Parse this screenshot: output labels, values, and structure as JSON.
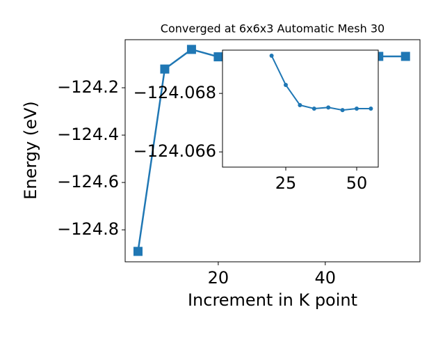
{
  "chart_data": [
    {
      "type": "line",
      "title": "Converged at 6x6x3 Automatic Mesh 30",
      "x_label": "Increment in K point",
      "y_label": "Energy (eV)",
      "x": [
        5,
        10,
        15,
        20,
        25,
        30,
        35,
        40,
        45,
        50,
        55
      ],
      "series": [
        {
          "color": "#1f77b4",
          "marker": "square",
          "values": [
            -124.891,
            -124.121,
            -124.038,
            -124.0693,
            -124.0683,
            -124.0676,
            -124.0675,
            -124.0675,
            -124.0674,
            -124.0675,
            -124.0675
          ]
        }
      ],
      "xlim": [
        2.6,
        57.7
      ],
      "ylim": [
        -124.935,
        -123.997
      ],
      "xticks": [
        20,
        40
      ],
      "yticks": [
        {
          "value": -124.2,
          "label": "−124.2"
        },
        {
          "value": -124.4,
          "label": "−124.4"
        },
        {
          "value": -124.6,
          "label": "−124.6"
        },
        {
          "value": -124.8,
          "label": "−124.8"
        }
      ]
    },
    {
      "type": "line",
      "x": [
        20,
        25,
        30,
        35,
        40,
        45,
        50,
        55
      ],
      "series": [
        {
          "color": "#1f77b4",
          "marker": "circle",
          "values": [
            -124.06929,
            -124.06829,
            -124.0676,
            -124.06748,
            -124.06752,
            -124.06743,
            -124.06748,
            -124.06748
          ]
        }
      ],
      "xlim": [
        2.7,
        57.6
      ],
      "ylim": [
        -124.06548,
        -124.06948
      ],
      "xticks": [
        25,
        50
      ],
      "yticks": [
        {
          "value": -124.068,
          "label": "−124.068"
        },
        {
          "value": -124.066,
          "label": "−124.066"
        }
      ]
    }
  ]
}
